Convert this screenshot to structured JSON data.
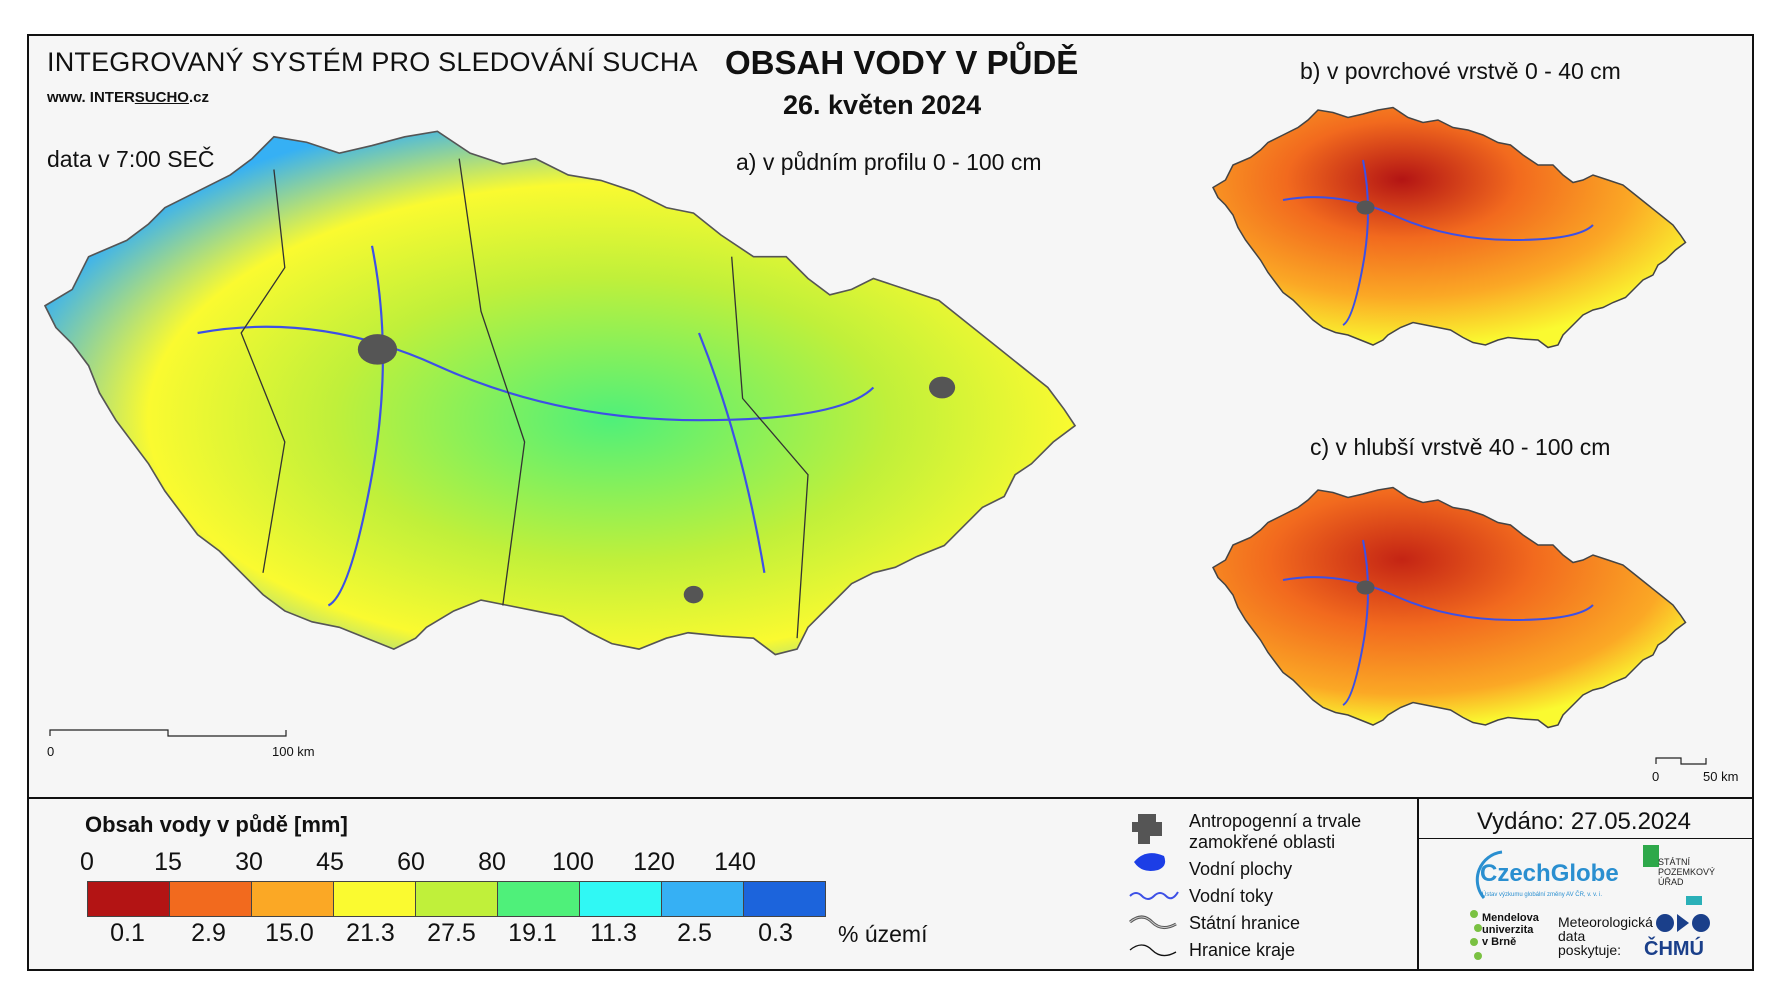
{
  "header": {
    "system_title": "INTEGROVANÝ SYSTÉM PRO SLEDOVÁNÍ SUCHA",
    "web_prefix": "www. INTER",
    "web_underlined": "SUCHO",
    "web_suffix": ".cz",
    "data_time": "data v 7:00 SEČ",
    "main_title": "OBSAH VODY V PŮDĚ",
    "date": "26. květen 2024"
  },
  "maps": {
    "a_label": "a) v půdním profilu 0 - 100 cm",
    "b_label": "b) v povrchové vrstvě 0 - 40 cm",
    "c_label": "c) v hlubší vrstvě 40 - 100 cm",
    "scale_main_zero": "0",
    "scale_main_end": "100 km",
    "scale_small_zero": "0",
    "scale_small_end": "50 km"
  },
  "legend": {
    "title": "Obsah vody v půdě  [mm]",
    "thresholds": [
      "0",
      "15",
      "30",
      "45",
      "60",
      "80",
      "100",
      "120",
      "140"
    ],
    "percentages": [
      "0.1",
      "2.9",
      "15.0",
      "21.3",
      "27.5",
      "19.1",
      "11.3",
      "2.5",
      "0.3"
    ],
    "percent_label": "% území",
    "colors": [
      "#b31414",
      "#f26a1e",
      "#fba825",
      "#fafa30",
      "#c0f03a",
      "#4ff07a",
      "#30f8f4",
      "#36b0f4",
      "#1c64dc"
    ]
  },
  "symbols": {
    "anthropogenic_line1": "Antropogenní a trvale",
    "anthropogenic_line2": "zamokřené oblasti",
    "water_bodies": "Vodní plochy",
    "rivers": "Vodní toky",
    "state_border": "Státní hranice",
    "region_border": "Hranice kraje"
  },
  "footer": {
    "issued": "Vydáno: 27.05.2024",
    "czechglobe": "CzechGlobe",
    "czechglobe_sub": "Ústav výzkumu globální změny AV ČR, v. v. i.",
    "spu_line1": "STÁTNÍ",
    "spu_line2": "POZEMKOVÝ",
    "spu_line3": "ÚŘAD",
    "mendel_line1": "Mendelova",
    "mendel_line2": "univerzita",
    "mendel_line3": "v Brně",
    "meteo_line1": "Meteorologická",
    "meteo_line2": "data",
    "meteo_line3": "poskytuje:",
    "chmu": "ČHMÚ"
  }
}
